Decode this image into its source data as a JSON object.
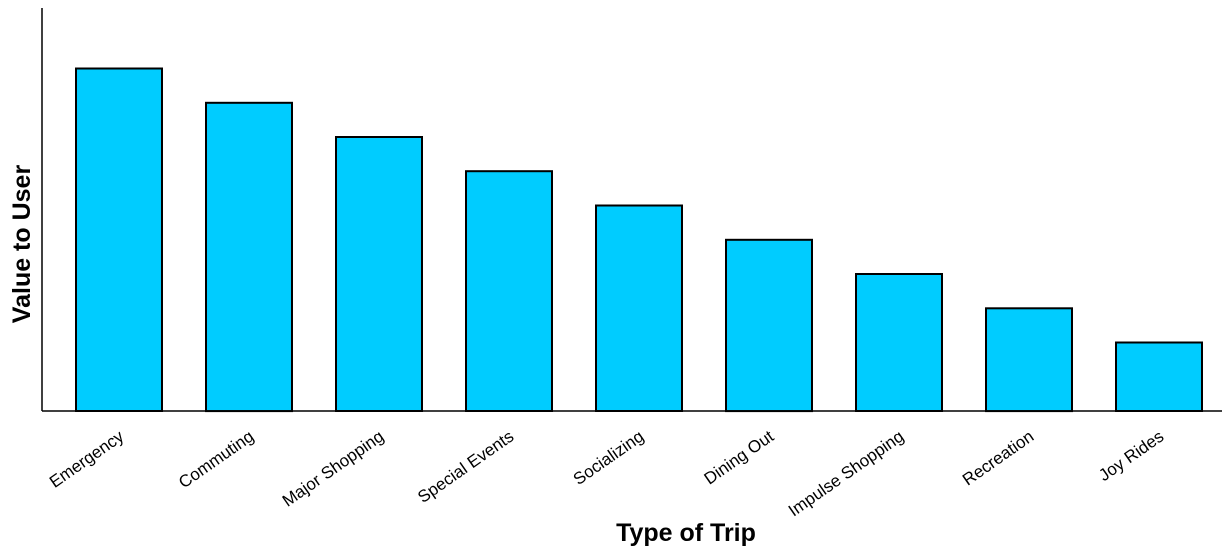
{
  "chart_data": {
    "type": "bar",
    "title": "",
    "xlabel": "Type of Trip",
    "ylabel": "Value to User",
    "categories": [
      "Emergency",
      "Commuting",
      "Major Shopping",
      "Special Events",
      "Socializing",
      "Dining Out",
      "Impulse Shopping",
      "Recreation",
      "Joy Rides"
    ],
    "values": [
      10,
      9,
      8,
      7,
      6,
      5,
      4,
      3,
      2
    ],
    "ylim": [
      0,
      12
    ],
    "y_tick_labels": false,
    "grid": false,
    "legend": "none",
    "bar_color": "#00CCFF",
    "bar_edge_color": "#000000"
  }
}
